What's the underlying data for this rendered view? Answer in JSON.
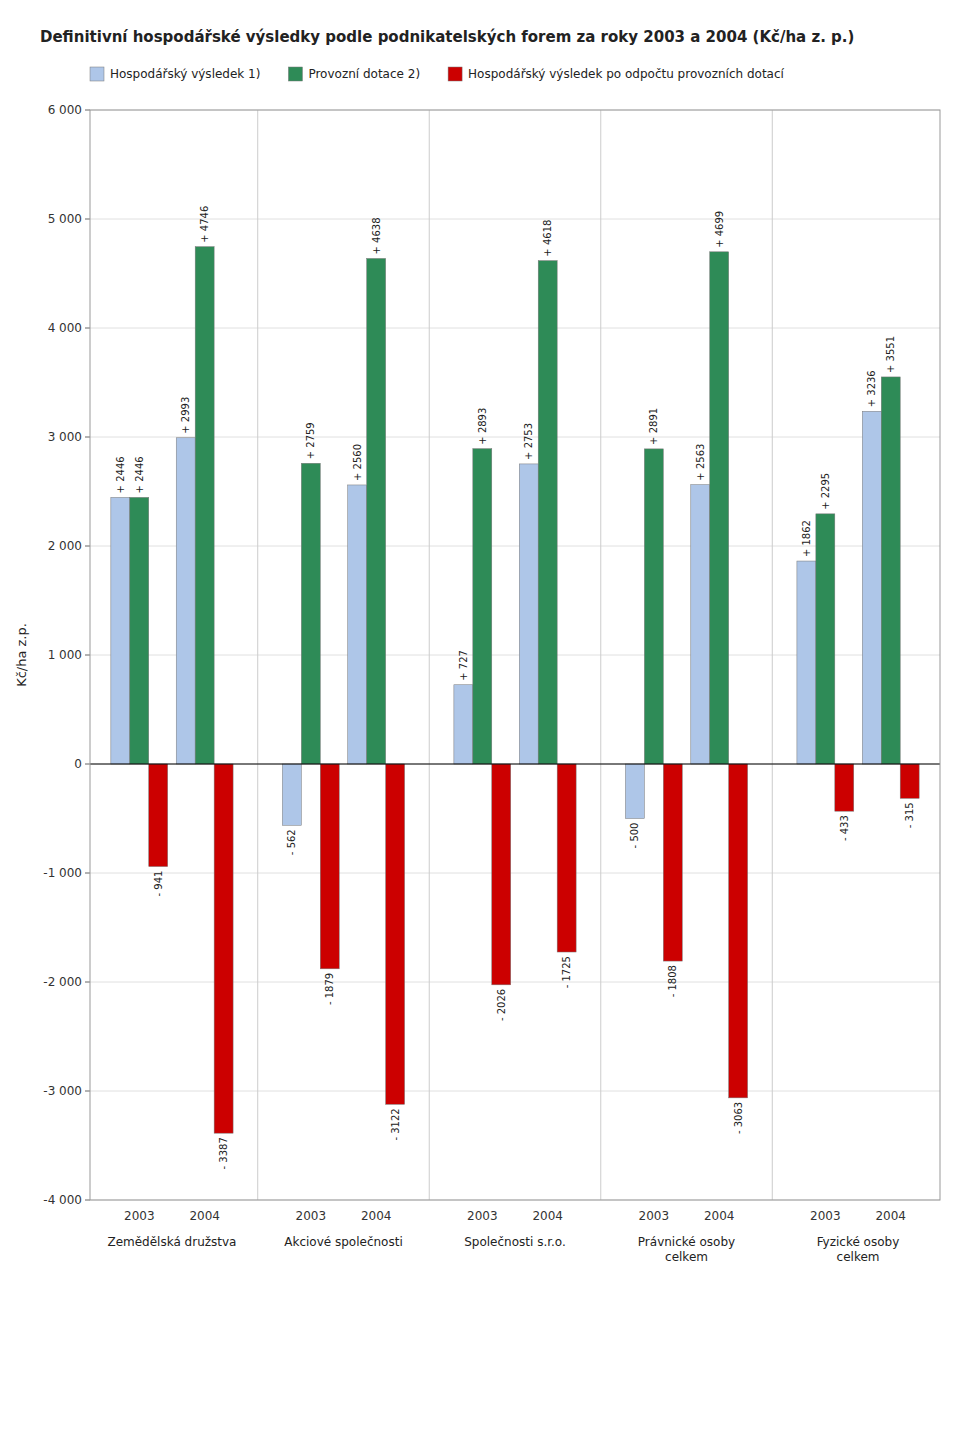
{
  "chart_data": {
    "type": "bar",
    "title": "Definitivní hospodářské výsledky podle podnikatelských forem za roky 2003 a 2004 (Kč/ha z. p.)",
    "ylabel": "Kč/ha z.p.",
    "categories": [
      "2003",
      "2004",
      "2003",
      "2004",
      "2003",
      "2004",
      "2003",
      "2004",
      "2003",
      "2004"
    ],
    "groups": [
      "Zemědělská družstva",
      "Akciové společnosti",
      "Společnosti s.r.o.",
      "Právnické osoby\ncelkem",
      "Fyzické osoby\ncelkem"
    ],
    "series": [
      {
        "name": "Hospodářský výsledek 1)",
        "color": "#aec6e8",
        "values": [
          2446,
          2993,
          -562,
          2560,
          727,
          2753,
          -500,
          2563,
          1862,
          3236
        ],
        "value_labels": [
          "+ 2446",
          "+ 2993",
          "- 562",
          "+ 2560",
          "+ 727",
          "+ 2753",
          "- 500",
          "+ 2563",
          "+ 1862",
          "+ 3236"
        ]
      },
      {
        "name": "Provozní dotace 2)",
        "color": "#2e8b57",
        "values": [
          2446,
          4746,
          2759,
          4638,
          2893,
          4618,
          2891,
          4699,
          2295,
          3551
        ],
        "value_labels": [
          "+ 2446",
          "+ 4746",
          "+ 2759",
          "+ 4638",
          "+ 2893",
          "+ 4618",
          "+ 2891",
          "+ 4699",
          "+ 2295",
          "+ 3551"
        ]
      },
      {
        "name": "Hospodářský výsledek po odpočtu provozních dotací",
        "color": "#cc0000",
        "values": [
          -941,
          -3387,
          -1879,
          -3122,
          -2026,
          -1725,
          -1808,
          -3063,
          -433,
          -315
        ],
        "value_labels": [
          "- 941",
          "- 3387",
          "- 1879",
          "- 3122",
          "- 2026",
          "- 1725",
          "- 1808",
          "- 3063",
          "- 433",
          "- 315"
        ]
      }
    ],
    "ylim": [
      -4000,
      6000
    ],
    "yticks": [
      {
        "value": -4000,
        "label": "-4 000"
      },
      {
        "value": -3000,
        "label": "-3 000"
      },
      {
        "value": -2000,
        "label": "-2 000"
      },
      {
        "value": -1000,
        "label": "-1 000"
      },
      0,
      {
        "value": 1000,
        "label": "1 000"
      },
      {
        "value": 2000,
        "label": "2 000"
      },
      {
        "value": 3000,
        "label": "3 000"
      },
      {
        "value": 4000,
        "label": "4 000"
      },
      {
        "value": 5000,
        "label": "5 000"
      },
      {
        "value": 6000,
        "label": "6 000"
      }
    ],
    "grid": true,
    "legend": "top",
    "data_labels": true
  }
}
